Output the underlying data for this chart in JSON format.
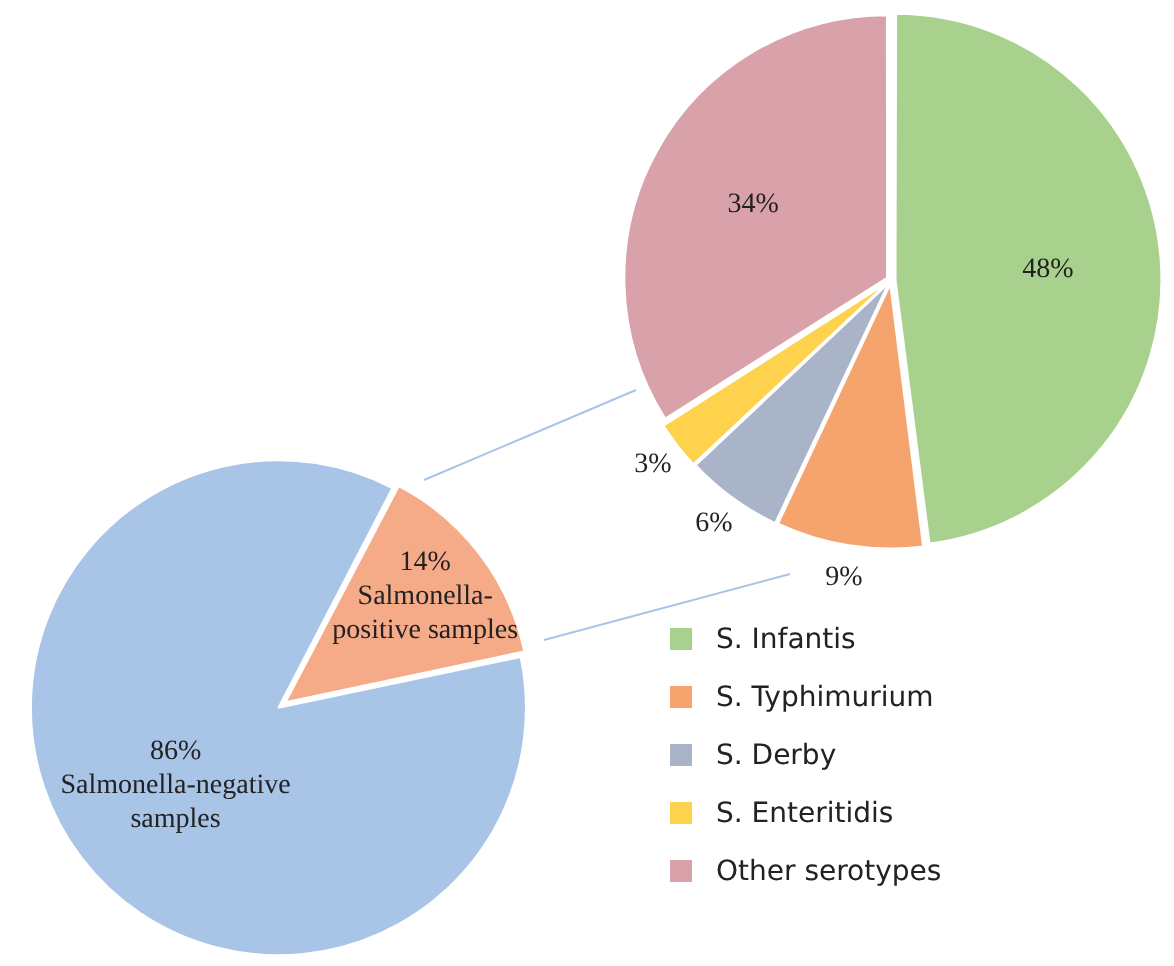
{
  "chart_data": [
    {
      "type": "pie",
      "categories": [
        "Salmonella-negative samples",
        "Salmonella-positive samples"
      ],
      "values": [
        86,
        14
      ],
      "colors": [
        "#a8c4e6",
        "#f5aa88"
      ],
      "value_labels": [
        "86%",
        "14%"
      ]
    },
    {
      "type": "pie",
      "categories": [
        "S. Infantis",
        "S. Typhimurium",
        "S. Derby",
        "S. Enteritidis",
        "Other serotypes"
      ],
      "values": [
        48,
        9,
        6,
        3,
        34
      ],
      "colors": [
        "#a9d18e",
        "#f4a46c",
        "#aab4c8",
        "#ffd24d",
        "#d9a1a9"
      ],
      "value_labels": [
        "48%",
        "9%",
        "6%",
        "3%",
        "34%"
      ],
      "legend": "bottom"
    }
  ]
}
